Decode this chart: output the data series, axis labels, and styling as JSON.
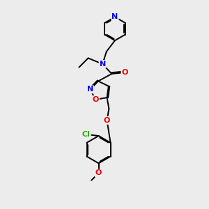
{
  "bg_color": "#ececec",
  "bond_color": "#000000",
  "atom_colors": {
    "N": "#0000ee",
    "O": "#ee0000",
    "Cl": "#33aa00",
    "C": "#000000"
  },
  "lw": 1.4,
  "fs": 8.0
}
